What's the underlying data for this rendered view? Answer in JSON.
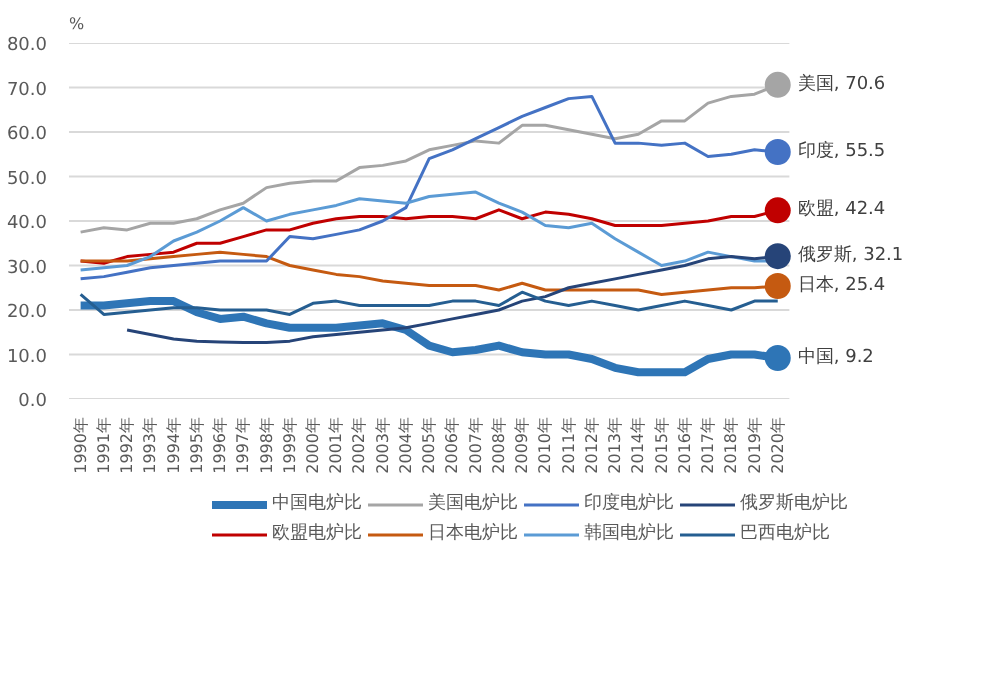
{
  "chart_data": {
    "type": "line",
    "ylabel": "%",
    "categories": [
      "1990年",
      "1991年",
      "1992年",
      "1993年",
      "1994年",
      "1995年",
      "1996年",
      "1997年",
      "1998年",
      "1999年",
      "2000年",
      "2001年",
      "2002年",
      "2003年",
      "2004年",
      "2005年",
      "2006年",
      "2007年",
      "2008年",
      "2009年",
      "2010年",
      "2011年",
      "2012年",
      "2013年",
      "2014年",
      "2015年",
      "2016年",
      "2017年",
      "2018年",
      "2019年",
      "2020年"
    ],
    "ylim": [
      0,
      80
    ],
    "yticks": [
      {
        "value": 0,
        "label": "0.0"
      },
      {
        "value": 10,
        "label": "10.0"
      },
      {
        "value": 20,
        "label": "20.0"
      },
      {
        "value": 30,
        "label": "30.0"
      },
      {
        "value": 40,
        "label": "40.0"
      },
      {
        "value": 50,
        "label": "50.0"
      },
      {
        "value": 60,
        "label": "60.0"
      },
      {
        "value": 70,
        "label": "70.0"
      },
      {
        "value": 80,
        "label": "80.0"
      }
    ],
    "grid": "y",
    "legend": "bottom",
    "series": [
      {
        "name": "中国电炉比",
        "color": "#2e75b6",
        "values": [
          21,
          21,
          21.5,
          22,
          22,
          19.5,
          18,
          18.5,
          17,
          16,
          16,
          16,
          16.5,
          17,
          15.5,
          12,
          10.5,
          11,
          12,
          10.5,
          10,
          10,
          9,
          7,
          6,
          6,
          6,
          9,
          10,
          10,
          9.2
        ],
        "value_labels": [
          null,
          null,
          null,
          null,
          null,
          null,
          null,
          null,
          null,
          null,
          null,
          null,
          null,
          null,
          null,
          null,
          null,
          null,
          null,
          null,
          null,
          null,
          null,
          null,
          null,
          null,
          null,
          null,
          null,
          null,
          "中国, 9.2"
        ]
      },
      {
        "name": "欧盟电炉比",
        "color": "#c00000",
        "values": [
          31,
          30.5,
          32,
          32.5,
          33,
          35,
          35,
          36.5,
          38,
          38,
          39.5,
          40.5,
          41,
          41,
          40.5,
          41,
          41,
          40.5,
          42.5,
          40.5,
          42,
          41.5,
          40.5,
          39,
          39,
          39,
          39.5,
          40,
          41,
          41,
          42.4
        ],
        "value_labels": [
          null,
          null,
          null,
          null,
          null,
          null,
          null,
          null,
          null,
          null,
          null,
          null,
          null,
          null,
          null,
          null,
          null,
          null,
          null,
          null,
          null,
          null,
          null,
          null,
          null,
          null,
          null,
          null,
          null,
          null,
          "欧盟, 42.4"
        ]
      },
      {
        "name": "美国电炉比",
        "color": "#a5a5a5",
        "values": [
          37.5,
          38.5,
          38,
          39.5,
          39.5,
          40.5,
          42.5,
          44,
          47.5,
          48.5,
          49,
          49,
          52,
          52.5,
          53.5,
          56,
          57,
          58,
          57.5,
          61.5,
          61.5,
          60.5,
          59.5,
          58.5,
          59.5,
          62.5,
          62.5,
          66.5,
          68,
          68.5,
          70.6
        ],
        "value_labels": [
          null,
          null,
          null,
          null,
          null,
          null,
          null,
          null,
          null,
          null,
          null,
          null,
          null,
          null,
          null,
          null,
          null,
          null,
          null,
          null,
          null,
          null,
          null,
          null,
          null,
          null,
          null,
          null,
          null,
          null,
          "美国, 70.6"
        ]
      },
      {
        "name": "日本电炉比",
        "color": "#c55a11",
        "values": [
          31,
          31,
          31,
          31.5,
          32,
          32.5,
          33,
          32.5,
          32,
          30,
          29,
          28,
          27.5,
          26.5,
          26,
          25.5,
          25.5,
          25.5,
          24.5,
          26,
          24.5,
          24.5,
          24.5,
          24.5,
          24.5,
          23.5,
          24,
          24.5,
          25,
          25,
          25.4
        ],
        "value_labels": [
          null,
          null,
          null,
          null,
          null,
          null,
          null,
          null,
          null,
          null,
          null,
          null,
          null,
          null,
          null,
          null,
          null,
          null,
          null,
          null,
          null,
          null,
          null,
          null,
          null,
          null,
          null,
          null,
          null,
          null,
          "日本, 25.4"
        ]
      },
      {
        "name": "印度电炉比",
        "color": "#4472c4",
        "values": [
          27,
          27.5,
          28.5,
          29.5,
          30,
          30.5,
          31,
          31,
          31,
          36.5,
          36,
          37,
          38,
          40,
          43,
          54,
          56,
          58.5,
          61,
          63.5,
          65.5,
          67.5,
          68,
          57.5,
          57.5,
          57,
          57.5,
          54.5,
          55,
          56,
          55.5
        ],
        "value_labels": [
          null,
          null,
          null,
          null,
          null,
          null,
          null,
          null,
          null,
          null,
          null,
          null,
          null,
          null,
          null,
          null,
          null,
          null,
          null,
          null,
          null,
          null,
          null,
          null,
          null,
          null,
          null,
          null,
          null,
          null,
          "印度, 55.5"
        ]
      },
      {
        "name": "韩国电炉比",
        "color": "#5b9bd5",
        "values": [
          29,
          29.5,
          30,
          32,
          35.5,
          37.5,
          40,
          43,
          40,
          41.5,
          42.5,
          43.5,
          45,
          44.5,
          44,
          45.5,
          46,
          46.5,
          44,
          42,
          39,
          38.5,
          39.5,
          36,
          33,
          30,
          31,
          33,
          32,
          31,
          31
        ]
      },
      {
        "name": "俄罗斯电炉比",
        "color": "#264478",
        "values": [
          null,
          null,
          15.5,
          14.5,
          13.5,
          13,
          12.8,
          12.7,
          12.7,
          13,
          14,
          14.5,
          15,
          15.5,
          16,
          17,
          18,
          19,
          20,
          22,
          23,
          25,
          26,
          27,
          28,
          29,
          30,
          31.5,
          32,
          31.5,
          32.1
        ],
        "value_labels": [
          null,
          null,
          null,
          null,
          null,
          null,
          null,
          null,
          null,
          null,
          null,
          null,
          null,
          null,
          null,
          null,
          null,
          null,
          null,
          null,
          null,
          null,
          null,
          null,
          null,
          null,
          null,
          null,
          null,
          null,
          "俄罗斯, 32.1"
        ]
      },
      {
        "name": "巴西电炉比",
        "color": "#255e91",
        "values": [
          23.5,
          19,
          19.5,
          20,
          20.5,
          20.5,
          20,
          20,
          20,
          19,
          21.5,
          22,
          21,
          21,
          21,
          21,
          22,
          22,
          21,
          24,
          22,
          21,
          22,
          21,
          20,
          21,
          22,
          21,
          20,
          22,
          22
        ]
      }
    ]
  }
}
